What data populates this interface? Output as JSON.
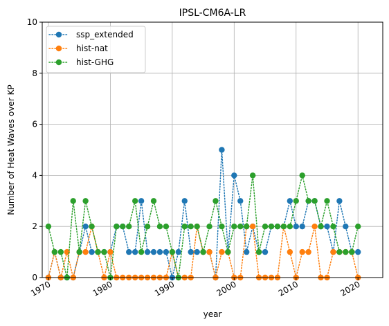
{
  "chart_data": {
    "type": "line",
    "title": "IPSL-CM6A-LR",
    "xlabel": "year",
    "ylabel": "Number of Heat Waves over KP",
    "xlim": [
      1969,
      2024
    ],
    "ylim": [
      0,
      10
    ],
    "xticks": [
      1970,
      1980,
      1990,
      2000,
      2010,
      2020
    ],
    "yticks": [
      0,
      2,
      4,
      6,
      8,
      10
    ],
    "grid": true,
    "legend_position": "top-left",
    "x": [
      1970,
      1971,
      1972,
      1973,
      1974,
      1975,
      1976,
      1977,
      1978,
      1979,
      1980,
      1981,
      1982,
      1983,
      1984,
      1985,
      1986,
      1987,
      1988,
      1989,
      1990,
      1991,
      1992,
      1993,
      1994,
      1995,
      1996,
      1997,
      1998,
      1999,
      2000,
      2001,
      2002,
      2003,
      2004,
      2005,
      2006,
      2007,
      2008,
      2009,
      2010,
      2011,
      2012,
      2013,
      2014,
      2015,
      2016,
      2017,
      2018,
      2019,
      2020
    ],
    "series": [
      {
        "name": "ssp_extended",
        "color": "#1f77b4",
        "values": [
          0,
          1,
          0,
          0,
          0,
          1,
          2,
          1,
          1,
          1,
          1,
          2,
          2,
          1,
          1,
          3,
          1,
          1,
          1,
          1,
          0,
          1,
          3,
          1,
          1,
          1,
          1,
          0,
          5,
          1,
          4,
          3,
          1,
          2,
          1,
          1,
          2,
          2,
          2,
          3,
          2,
          2,
          3,
          3,
          2,
          2,
          1,
          3,
          2,
          1,
          1
        ]
      },
      {
        "name": "hist-nat",
        "color": "#ff7f0e",
        "values": [
          0,
          1,
          0,
          1,
          0,
          1,
          1,
          2,
          1,
          0,
          1,
          0,
          0,
          0,
          0,
          0,
          0,
          0,
          0,
          0,
          1,
          0,
          0,
          0,
          2,
          1,
          1,
          0,
          1,
          1,
          0,
          0,
          2,
          2,
          0,
          0,
          0,
          0,
          2,
          1,
          0,
          1,
          1,
          2,
          0,
          0,
          1,
          1,
          1,
          1,
          0
        ]
      },
      {
        "name": "hist-GHG",
        "color": "#2ca02c",
        "values": [
          2,
          1,
          1,
          0,
          3,
          1,
          3,
          2,
          1,
          1,
          0,
          2,
          2,
          2,
          3,
          1,
          2,
          3,
          2,
          2,
          1,
          0,
          2,
          2,
          2,
          1,
          2,
          3,
          2,
          1,
          2,
          2,
          2,
          4,
          1,
          2,
          2,
          2,
          2,
          2,
          3,
          4,
          3,
          3,
          2,
          3,
          2,
          1,
          1,
          1,
          2
        ]
      }
    ]
  }
}
